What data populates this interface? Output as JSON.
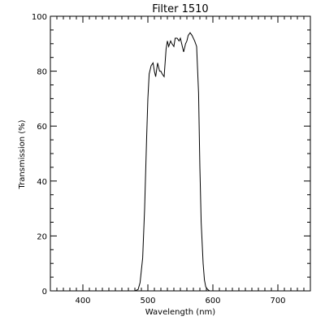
{
  "chart_data": {
    "type": "line",
    "title": "Filter 1510",
    "xlabel": "Wavelength (nm)",
    "ylabel": "Transmission (%)",
    "xlim": [
      350,
      750
    ],
    "ylim": [
      0,
      100
    ],
    "xticks": [
      400,
      500,
      600,
      700
    ],
    "yticks": [
      0,
      20,
      40,
      60,
      80,
      100
    ],
    "x_minor_step": 10,
    "y_minor_step": 5,
    "grid": false,
    "line_color": "#000000",
    "series": [
      {
        "x": [
          350,
          470,
          480,
          485,
          488,
          492,
          495,
          498,
          500,
          502,
          505,
          508,
          510,
          512,
          515,
          518,
          520,
          522,
          525,
          528,
          530,
          532,
          535,
          537,
          540,
          542,
          545,
          548,
          550,
          552,
          555,
          558,
          560,
          562,
          565,
          568,
          570,
          572,
          575,
          578,
          580,
          582,
          585,
          587,
          589,
          592,
          595,
          598,
          600,
          605,
          610,
          750
        ],
        "y": [
          0,
          0,
          0,
          0.5,
          3,
          12,
          30,
          55,
          70,
          79,
          82,
          83,
          80,
          78,
          83,
          80,
          80,
          79,
          78,
          88,
          91,
          89,
          91,
          90,
          89,
          92,
          92,
          91,
          92,
          90,
          87,
          90,
          91,
          93,
          94,
          93,
          92,
          91,
          89,
          72,
          45,
          25,
          10,
          4,
          1.5,
          0.5,
          0,
          0,
          0,
          0,
          0,
          0
        ]
      }
    ]
  }
}
